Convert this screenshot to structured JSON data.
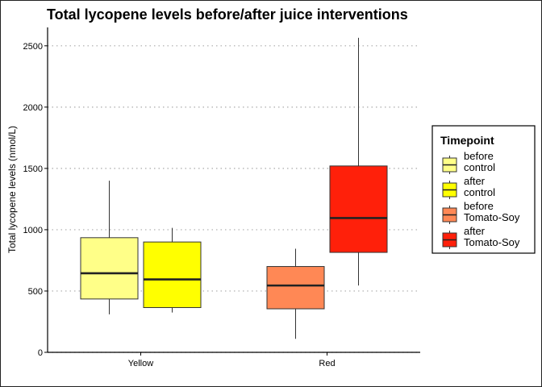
{
  "chart_data": {
    "type": "box",
    "title": "Total lycopene levels before/after juice interventions",
    "xlabel": "",
    "ylabel": "Total lycopene levels (nmol/L)",
    "ylim": [
      0,
      2650
    ],
    "yticks": [
      0,
      500,
      1000,
      1500,
      2000,
      2500
    ],
    "grid": "horizontal-dotted",
    "categories": [
      "Yellow",
      "Red"
    ],
    "legend": {
      "title": "Timepoint",
      "position": "right",
      "entries": [
        {
          "line1": "before",
          "line2": "control",
          "color": "#FFFF88"
        },
        {
          "line1": "after",
          "line2": "control",
          "color": "#FFFF00"
        },
        {
          "line1": "before",
          "line2": "Tomato-Soy",
          "color": "#FF8855"
        },
        {
          "line1": "after",
          "line2": "Tomato-Soy",
          "color": "#FF200A"
        }
      ]
    },
    "series": [
      {
        "category": "Yellow",
        "group": "before control",
        "color": "#FFFF88",
        "min": 310,
        "q1": 435,
        "median": 645,
        "q3": 935,
        "max": 1400
      },
      {
        "category": "Yellow",
        "group": "after control",
        "color": "#FFFF00",
        "min": 325,
        "q1": 365,
        "median": 595,
        "q3": 900,
        "max": 1015
      },
      {
        "category": "Red",
        "group": "before Tomato-Soy",
        "color": "#FF8855",
        "min": 110,
        "q1": 355,
        "median": 545,
        "q3": 700,
        "max": 845
      },
      {
        "category": "Red",
        "group": "after Tomato-Soy",
        "color": "#FF200A",
        "min": 545,
        "q1": 815,
        "median": 1095,
        "q3": 1520,
        "max": 2565
      }
    ]
  }
}
